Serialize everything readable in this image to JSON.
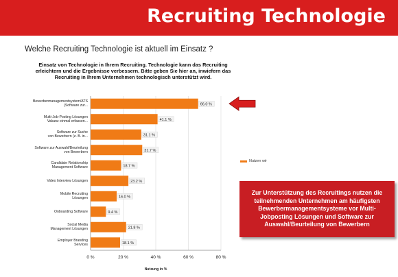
{
  "header": {
    "title": "Recruiting Technologie"
  },
  "question": "Welche Recruiting Technologie ist aktuell im Einsatz ?",
  "callout": "Zur Unterstützung des Recruitings nutzen die teilnehmenden Unternehmen am häufigsten Bewerbermanagementsysteme vor Multi-Jobposting Lösungen und Software zur Auswahl/Beurteilung von Bewerbern",
  "colors": {
    "header": "#d81e1e",
    "bar": "#f07b16",
    "callout": "#c81e23",
    "arrow": "#d81e1e"
  },
  "chart_data": {
    "type": "bar",
    "orientation": "horizontal",
    "title": "Einsatz von Technologie in Ihrem Recruiting. Technologie kann das Recruiting erleichtern und die Ergebnisse verbessern. Bitte geben Sie hier an, inwiefern das Recruiting in Ihrem Unternehmen technologisch unterstützt wird.",
    "categories": [
      [
        "Bewerbermanagementsystem/ATS",
        "(Software zur..."
      ],
      [
        "Multi-Job-Posting Lösungen",
        "Vakanz einmal erfassen..."
      ],
      [
        "Software zur Suche",
        "von Bewerbern (z. B. in..."
      ],
      [
        "Software zur Auswahl/Beurteilung",
        "von Bewerbern"
      ],
      [
        "Candidate Relationship",
        "Management Software"
      ],
      [
        "Video Interview Lösungen"
      ],
      [
        "Mobile Recruiting",
        "Lösungen"
      ],
      [
        "Onboarding Software"
      ],
      [
        "Social Media",
        "Management Lösungen"
      ],
      [
        "Employer Branding",
        "Services"
      ]
    ],
    "values": [
      66.0,
      41.1,
      31.1,
      31.7,
      18.7,
      23.2,
      16.0,
      9.4,
      21.8,
      18.1
    ],
    "value_labels": [
      "66.0 %",
      "41.1 %",
      "31.1 %",
      "31.7 %",
      "18.7 %",
      "23.2 %",
      "16.0 %",
      "9.4 %",
      "21.8 %",
      "18.1 %"
    ],
    "xlim": [
      0,
      80
    ],
    "xticks": [
      0,
      20,
      40,
      60,
      80
    ],
    "xtick_labels": [
      "0 %",
      "20 %",
      "40 %",
      "60 %",
      "80 %"
    ],
    "xlabel": "Nutzung in %",
    "legend": [
      "Nutzen wir"
    ],
    "legend_position": "right",
    "grid": true,
    "highlight_index": 0
  }
}
